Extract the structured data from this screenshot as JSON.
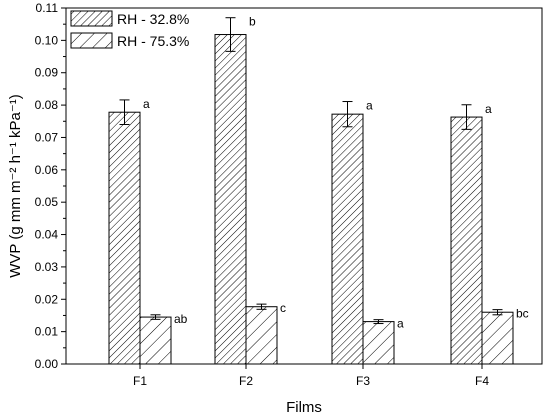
{
  "chart_data": {
    "type": "bar",
    "categories": [
      "F1",
      "F2",
      "F3",
      "F4"
    ],
    "series": [
      {
        "name": "RH - 32.8%",
        "values": [
          0.0778,
          0.1018,
          0.0772,
          0.0763
        ],
        "errors": [
          0.0038,
          0.0052,
          0.0039,
          0.0038
        ],
        "labels": [
          "a",
          "b",
          "a",
          "a"
        ],
        "pattern": "dense-diagonal"
      },
      {
        "name": "RH - 75.3%",
        "values": [
          0.0145,
          0.0177,
          0.0131,
          0.016
        ],
        "errors": [
          0.0007,
          0.0008,
          0.0006,
          0.0008
        ],
        "labels": [
          "ab",
          "c",
          "a",
          "bc"
        ],
        "pattern": "sparse-diagonal"
      }
    ],
    "xlabel": "Films",
    "ylabel": "WVP (g mm m⁻² h⁻¹ kPa⁻¹)",
    "ylim": [
      0,
      0.11
    ],
    "yticks": [
      "0.00",
      "0.01",
      "0.02",
      "0.03",
      "0.04",
      "0.05",
      "0.06",
      "0.07",
      "0.08",
      "0.09",
      "0.10",
      "0.11"
    ],
    "legend_position": "top-left",
    "grid": false
  }
}
